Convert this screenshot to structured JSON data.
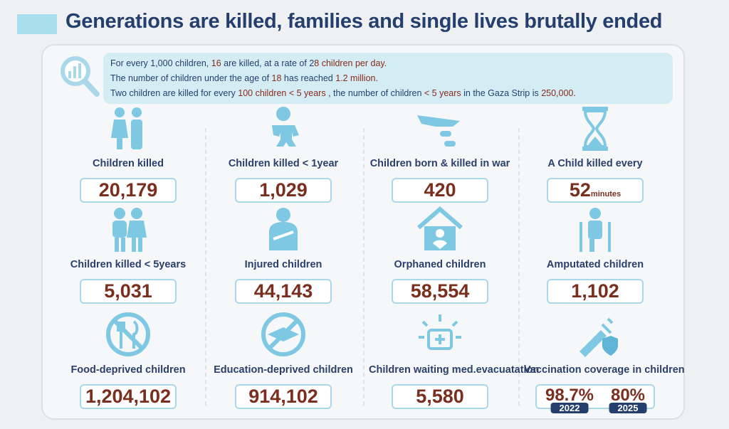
{
  "title": "Generations are killed, families and single lives brutally ended",
  "colors": {
    "navy": "#243f6e",
    "value": "#7a2e1e",
    "icon": "#7ec8e3",
    "highlight": "#8a2a1a"
  },
  "info": [
    [
      {
        "t": "For every 1,000 children, "
      },
      {
        "t": "16",
        "h": true
      },
      {
        "t": " are killed, at a rate of 2"
      },
      {
        "t": "8 children per day.",
        "h": true
      }
    ],
    [
      {
        "t": "The number of children under the age of "
      },
      {
        "t": "18",
        "h": true
      },
      {
        "t": " has reached "
      },
      {
        "t": "1.2 million.",
        "h": true
      }
    ],
    [
      {
        "t": "Two children are killed for every "
      },
      {
        "t": "100 children < 5 years",
        "h": true
      },
      {
        "t": " , the number of children "
      },
      {
        "t": "< 5 years",
        "h": true
      },
      {
        "t": " in the Gaza Strip is "
      },
      {
        "t": "250,000.",
        "h": true
      }
    ]
  ],
  "stats": [
    {
      "label": "Children killed",
      "value": "20,179",
      "icon": "parents-icon"
    },
    {
      "label": "Children killed < 1year",
      "value": "1,029",
      "icon": "baby-icon"
    },
    {
      "label": "Children born & killed in war",
      "value": "420",
      "icon": "missile-icon"
    },
    {
      "label": "A Child killed every",
      "value": "52",
      "unit": "minutes",
      "icon": "hourglass-icon"
    },
    {
      "label": "Children killed < 5years",
      "value": "5,031",
      "icon": "kids-icon"
    },
    {
      "label": "Injured children",
      "value": "44,143",
      "icon": "injured-icon"
    },
    {
      "label": "Orphaned children",
      "value": "58,554",
      "icon": "home-heart-icon"
    },
    {
      "label": "Amputated children",
      "value": "1,102",
      "icon": "crutches-icon"
    },
    {
      "label": "Food-deprived children",
      "value": "1,204,102",
      "icon": "no-food-icon"
    },
    {
      "label": "Education-deprived children",
      "value": "914,102",
      "icon": "no-education-icon"
    },
    {
      "label": "Children waiting med.evacuatation",
      "value": "5,580",
      "icon": "medkit-icon"
    },
    {
      "label": "Vaccination coverage in children",
      "icon": "syringe-icon",
      "values": [
        {
          "value": "98.7%",
          "year": "2022"
        },
        {
          "value": "80%",
          "year": "2025"
        }
      ]
    }
  ]
}
